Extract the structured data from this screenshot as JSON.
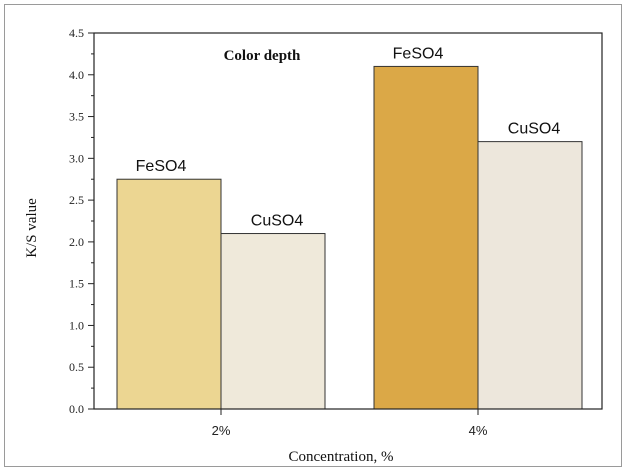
{
  "chart_data": {
    "type": "bar",
    "title": "Color depth",
    "xlabel": "Concentration, %",
    "ylabel": "K/S value",
    "categories": [
      "2%",
      "4%"
    ],
    "series": [
      {
        "values": [
          2.75,
          4.1
        ],
        "bar_labels": [
          "FeSO4",
          "FeSO4"
        ],
        "colors": [
          "#ecd692",
          "#dba847"
        ]
      },
      {
        "values": [
          2.1,
          3.2
        ],
        "bar_labels": [
          "CuSO4",
          "CuSO4"
        ],
        "colors": [
          "#efe9da",
          "#ede7dc"
        ]
      }
    ],
    "ylim": [
      0,
      4.5
    ],
    "yticks": [
      "0.0",
      "0.5",
      "1.0",
      "1.5",
      "2.0",
      "2.5",
      "3.0",
      "3.5",
      "4.0",
      "4.5"
    ],
    "grid": false,
    "legend": "none"
  }
}
